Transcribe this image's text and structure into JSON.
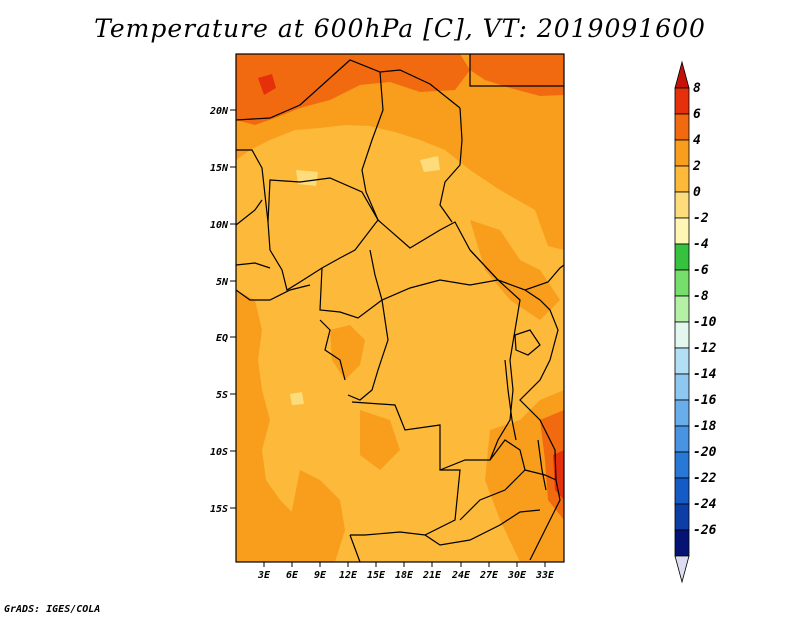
{
  "title": "Temperature at 600hPa [C], VT: 2019091600",
  "credit": "GrADS: IGES/COLA",
  "map": {
    "lat_ticks": [
      "20N",
      "15N",
      "10N",
      "5N",
      "EQ",
      "5S",
      "10S",
      "15S"
    ],
    "lon_ticks": [
      "3E",
      "6E",
      "9E",
      "12E",
      "15E",
      "18E",
      "21E",
      "24E",
      "27E",
      "30E",
      "33E"
    ],
    "colors": {
      "range_0_2": "#fdb93a",
      "range_2_4": "#f99d1c",
      "range_4_6": "#f26a0f",
      "range_6_8": "#e5300b",
      "range_m2_0": "#fddc7b"
    }
  },
  "colorbar": {
    "labels": [
      "8",
      "6",
      "4",
      "2",
      "0",
      "-2",
      "-4",
      "-6",
      "-8",
      "-10",
      "-12",
      "-14",
      "-16",
      "-18",
      "-20",
      "-22",
      "-24",
      "-26"
    ],
    "colors": [
      "#c41208",
      "#e5300b",
      "#f26a0f",
      "#f99d1c",
      "#fdb93a",
      "#fddc7b",
      "#fff5b5",
      "#36c23f",
      "#77dd6b",
      "#b5f0a7",
      "#e2f8ee",
      "#b3dff5",
      "#8ec7f0",
      "#6aadeb",
      "#4893e2",
      "#2878d6",
      "#145bc6",
      "#0c3ea6",
      "#051374",
      "#dcdcf2"
    ]
  }
}
